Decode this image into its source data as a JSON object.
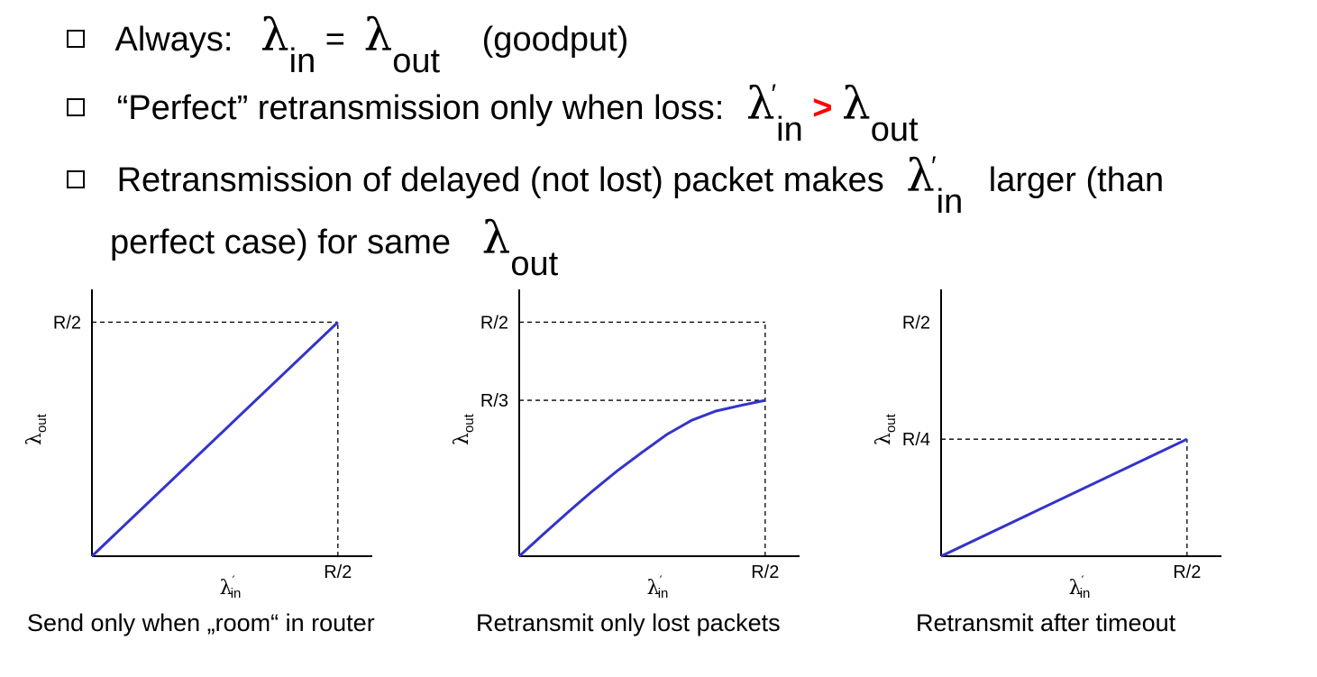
{
  "bullets": [
    {
      "pre": "Always:",
      "eq": "=",
      "post": "(goodput)"
    },
    {
      "pre": "“Perfect” retransmission only when loss:",
      "gt": ">"
    },
    {
      "pre": "Retransmission of delayed (not lost) packet makes",
      "post": "larger (than"
    },
    {
      "pre": "perfect case) for same"
    }
  ],
  "symbols": {
    "lambda": "λ",
    "in": "in",
    "out": "out",
    "prime": "′"
  },
  "colors": {
    "curve": "#3333cc",
    "accent": "#ff0000"
  },
  "chart_data": [
    {
      "type": "line",
      "title": "",
      "xlabel": "λin′",
      "ylabel": "λout",
      "xlim": [
        0,
        0.57
      ],
      "ylim": [
        0,
        0.57
      ],
      "x_ticks": [
        {
          "value": 0.5,
          "label": "R/2"
        }
      ],
      "y_ticks": [
        {
          "value": 0.5,
          "label": "R/2"
        }
      ],
      "series": [
        {
          "x": [
            0,
            0.5
          ],
          "y": [
            0,
            0.5
          ]
        }
      ],
      "caption": "Send only when „room“ in router"
    },
    {
      "type": "line",
      "title": "",
      "xlabel": "λin′",
      "ylabel": "λout",
      "xlim": [
        0,
        0.57
      ],
      "ylim": [
        0,
        0.57
      ],
      "x_ticks": [
        {
          "value": 0.5,
          "label": "R/2"
        }
      ],
      "y_ticks": [
        {
          "value": 0.5,
          "label": "R/2"
        },
        {
          "value": 0.333,
          "label": "R/3"
        }
      ],
      "series": [
        {
          "x": [
            0,
            0.05,
            0.1,
            0.15,
            0.2,
            0.25,
            0.3,
            0.35,
            0.4,
            0.45,
            0.5
          ],
          "y": [
            0,
            0.048,
            0.095,
            0.14,
            0.183,
            0.222,
            0.26,
            0.29,
            0.31,
            0.322,
            0.333
          ]
        }
      ],
      "caption": "Retransmit only lost packets"
    },
    {
      "type": "line",
      "title": "",
      "xlabel": "λin′",
      "ylabel": "λout",
      "xlim": [
        0,
        0.57
      ],
      "ylim": [
        0,
        0.57
      ],
      "x_ticks": [
        {
          "value": 0.5,
          "label": "R/2"
        }
      ],
      "y_ticks": [
        {
          "value": 0.5,
          "label": "R/2",
          "guide": false
        },
        {
          "value": 0.25,
          "label": "R/4"
        }
      ],
      "series": [
        {
          "x": [
            0,
            0.5
          ],
          "y": [
            0,
            0.25
          ]
        }
      ],
      "caption": "Retransmit after timeout"
    }
  ]
}
